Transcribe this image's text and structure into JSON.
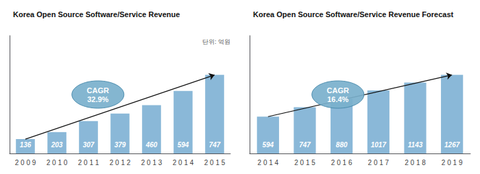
{
  "chart_data": [
    {
      "type": "bar",
      "title": "Korea Open Source Software/Service Revenue",
      "categories": [
        "2 0 0 9",
        "2 0 1 0",
        "2 0 1 1",
        "2 0 1 2",
        "2 0 1 3",
        "2 0 1 4",
        "2 0 1 5"
      ],
      "values": [
        136,
        203,
        307,
        379,
        460,
        594,
        747
      ],
      "color": "#8ab8d8",
      "ylim": [
        0,
        1120.5
      ],
      "data_labels": true,
      "tick_labels": "x",
      "grid": false,
      "annotations": [
        "CAGR\n32.9%",
        "단위: 억원"
      ]
    },
    {
      "type": "bar",
      "title": "Korea Open Source Software/Service Revenue Forecast",
      "categories": [
        "2 0 1 4",
        "2 0 1 5",
        "2 0 1 6",
        "2 0 1 7",
        "2 0 1 8",
        "2 0 1 9"
      ],
      "values": [
        594,
        747,
        880,
        1017,
        1143,
        1267
      ],
      "color": "#8ab8d8",
      "ylim": [
        0,
        1900.5
      ],
      "data_labels": true,
      "tick_labels": "x",
      "grid": false,
      "annotations": [
        "CAGR\n16.4%"
      ]
    }
  ]
}
